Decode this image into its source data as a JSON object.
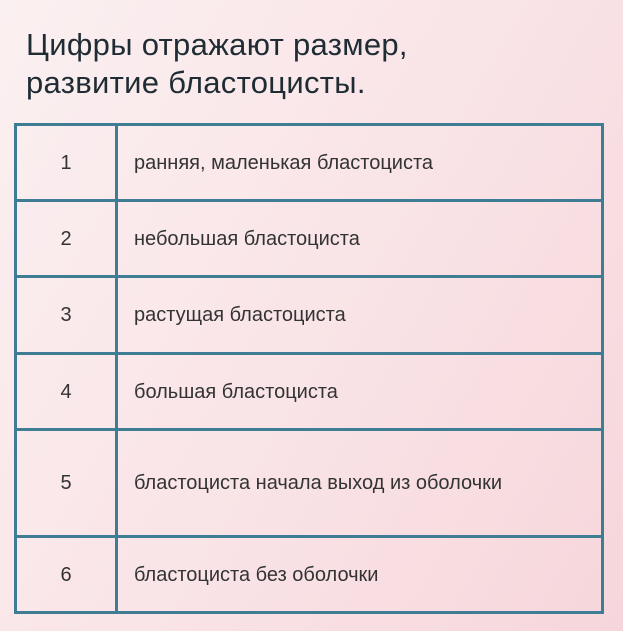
{
  "title_lines": [
    "Цифры отражают размер,",
    "развитие бластоцисты."
  ],
  "rows": [
    {
      "number": "1",
      "description": "ранняя, маленькая бластоциста"
    },
    {
      "number": "2",
      "description": "небольшая бластоциста"
    },
    {
      "number": "3",
      "description": "растущая бластоциста"
    },
    {
      "number": "4",
      "description": "большая бластоциста"
    },
    {
      "number": "5",
      "description": "бластоциста начала выход из оболочки"
    },
    {
      "number": "6",
      "description": "бластоциста без оболочки"
    }
  ],
  "colors": {
    "border": "#3e7d93",
    "title": "#1f2c33",
    "text": "#333333"
  }
}
